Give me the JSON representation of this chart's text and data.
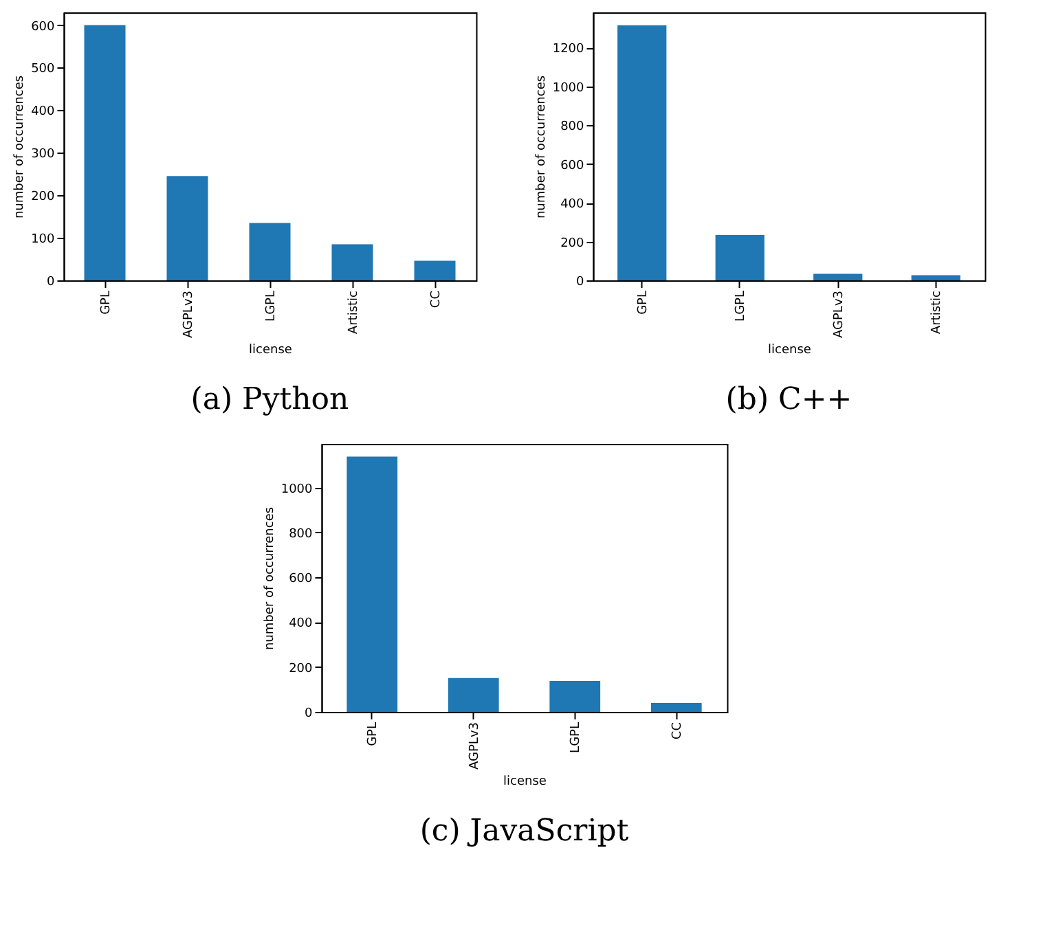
{
  "chart_data": [
    {
      "type": "bar",
      "title": "(a) Python",
      "xlabel": "license",
      "ylabel": "number of occurrences",
      "categories": [
        "GPL",
        "AGPLv3",
        "LGPL",
        "Artistic",
        "CC"
      ],
      "values": [
        600,
        245,
        135,
        85,
        46
      ],
      "color": "#1f77b4",
      "ylim": [
        0,
        630
      ],
      "yticks": [
        0,
        100,
        200,
        300,
        400,
        500,
        600
      ],
      "grid": false
    },
    {
      "type": "bar",
      "title": "(b) C++",
      "xlabel": "license",
      "ylabel": "number of occurrences",
      "categories": [
        "GPL",
        "LGPL",
        "AGPLv3",
        "Artistic"
      ],
      "values": [
        1316,
        234,
        34,
        27
      ],
      "color": "#1f77b4",
      "ylim": [
        0,
        1382
      ],
      "yticks": [
        0,
        200,
        400,
        600,
        800,
        1000,
        1200
      ],
      "grid": false
    },
    {
      "type": "bar",
      "title": "(c) JavaScript",
      "xlabel": "license",
      "ylabel": "number of occurrences",
      "categories": [
        "GPL",
        "AGPLv3",
        "LGPL",
        "CC"
      ],
      "values": [
        1138,
        151,
        138,
        40
      ],
      "color": "#1f77b4",
      "ylim": [
        0,
        1195
      ],
      "yticks": [
        0,
        200,
        400,
        600,
        800,
        1000
      ],
      "grid": false
    }
  ]
}
